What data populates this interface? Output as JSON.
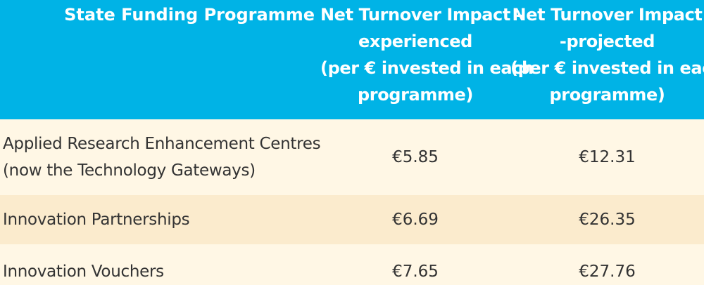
{
  "table": {
    "headers": {
      "programme": "State Funding Programme",
      "experienced": [
        "Net Turnover Impact –",
        "experienced",
        "(per € invested in each",
        "programme)"
      ],
      "projected": [
        "Net Turnover Impact",
        "-projected",
        "(per € invested in each",
        "programme)"
      ]
    },
    "rows": [
      {
        "programme": [
          "Applied Research Enhancement Centres",
          "(now the Technology Gateways)"
        ],
        "experienced": "€5.85",
        "projected": "€12.31"
      },
      {
        "programme": [
          "Innovation Partnerships"
        ],
        "experienced": "€6.69",
        "projected": "€26.35"
      },
      {
        "programme": [
          "Innovation Vouchers"
        ],
        "experienced": "€7.65",
        "projected": "€27.76"
      }
    ],
    "colors": {
      "header_bg": "#00b3e6",
      "header_text": "#ffffff",
      "row_light": "#fff7e5",
      "row_dark": "#fbebcd",
      "body_text": "#333333"
    }
  }
}
